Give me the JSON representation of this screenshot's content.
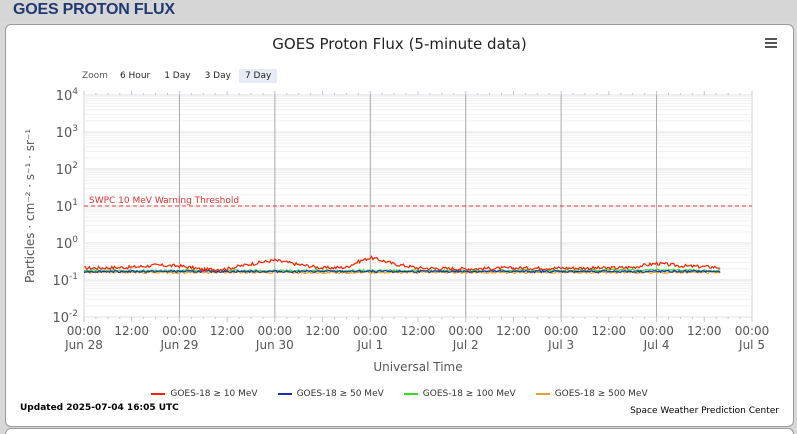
{
  "panel": {
    "title": "GOES PROTON FLUX"
  },
  "chart": {
    "title": "GOES Proton Flux (5-minute data)",
    "zoom_label": "Zoom",
    "zoom_options": [
      "6 Hour",
      "1 Day",
      "3 Day",
      "7 Day"
    ],
    "zoom_selected": "7 Day",
    "updated": "Updated 2025-07-04 16:05 UTC",
    "credit": "Space Weather Prediction Center"
  },
  "chart_data": {
    "type": "line",
    "title": "GOES Proton Flux (5-minute data)",
    "xlabel": "Universal Time",
    "ylabel": "Particles · cm⁻² · s⁻¹ · sr⁻¹",
    "y_scale": "log",
    "ylim": [
      0.01,
      10000
    ],
    "xlim": [
      "2025-06-28 00:00",
      "2025-07-05 00:00"
    ],
    "y_ticks": [
      {
        "value": 10000,
        "label_base": "10",
        "label_exp": "4"
      },
      {
        "value": 1000,
        "label_base": "10",
        "label_exp": "3"
      },
      {
        "value": 100,
        "label_base": "10",
        "label_exp": "2"
      },
      {
        "value": 10,
        "label_base": "10",
        "label_exp": "1"
      },
      {
        "value": 1,
        "label_base": "10",
        "label_exp": "0"
      },
      {
        "value": 0.1,
        "label_base": "10",
        "label_exp": "-1"
      },
      {
        "value": 0.01,
        "label_base": "10",
        "label_exp": "-2"
      }
    ],
    "x_ticks": [
      {
        "t": "2025-06-28 00:00",
        "time": "00:00",
        "date": "Jun 28"
      },
      {
        "t": "2025-06-28 12:00",
        "time": "12:00",
        "date": ""
      },
      {
        "t": "2025-06-29 00:00",
        "time": "00:00",
        "date": "Jun 29"
      },
      {
        "t": "2025-06-29 12:00",
        "time": "12:00",
        "date": ""
      },
      {
        "t": "2025-06-30 00:00",
        "time": "00:00",
        "date": "Jun 30"
      },
      {
        "t": "2025-06-30 12:00",
        "time": "12:00",
        "date": ""
      },
      {
        "t": "2025-07-01 00:00",
        "time": "00:00",
        "date": "Jul 1"
      },
      {
        "t": "2025-07-01 12:00",
        "time": "12:00",
        "date": ""
      },
      {
        "t": "2025-07-02 00:00",
        "time": "00:00",
        "date": "Jul 2"
      },
      {
        "t": "2025-07-02 12:00",
        "time": "12:00",
        "date": ""
      },
      {
        "t": "2025-07-03 00:00",
        "time": "00:00",
        "date": "Jul 3"
      },
      {
        "t": "2025-07-03 12:00",
        "time": "12:00",
        "date": ""
      },
      {
        "t": "2025-07-04 00:00",
        "time": "00:00",
        "date": "Jul 4"
      },
      {
        "t": "2025-07-04 12:00",
        "time": "12:00",
        "date": ""
      },
      {
        "t": "2025-07-05 00:00",
        "time": "00:00",
        "date": "Jul 5"
      }
    ],
    "threshold": {
      "value": 10,
      "label": "SWPC 10 MeV Warning Threshold",
      "color": "#e03030"
    },
    "series": [
      {
        "name": "GOES-18 ≥ 10 MeV",
        "color": "#ff2000",
        "points": [
          [
            "2025-06-28 00:00",
            0.21
          ],
          [
            "2025-06-28 12:00",
            0.22
          ],
          [
            "2025-06-28 18:00",
            0.25
          ],
          [
            "2025-06-29 00:00",
            0.24
          ],
          [
            "2025-06-29 06:00",
            0.19
          ],
          [
            "2025-06-29 12:00",
            0.2
          ],
          [
            "2025-06-29 18:00",
            0.27
          ],
          [
            "2025-06-30 00:00",
            0.34
          ],
          [
            "2025-06-30 06:00",
            0.26
          ],
          [
            "2025-06-30 12:00",
            0.21
          ],
          [
            "2025-06-30 18:00",
            0.22
          ],
          [
            "2025-07-01 00:00",
            0.4
          ],
          [
            "2025-07-01 06:00",
            0.27
          ],
          [
            "2025-07-01 12:00",
            0.21
          ],
          [
            "2025-07-02 00:00",
            0.2
          ],
          [
            "2025-07-02 12:00",
            0.21
          ],
          [
            "2025-07-03 00:00",
            0.21
          ],
          [
            "2025-07-03 12:00",
            0.21
          ],
          [
            "2025-07-03 18:00",
            0.22
          ],
          [
            "2025-07-04 00:00",
            0.28
          ],
          [
            "2025-07-04 06:00",
            0.24
          ],
          [
            "2025-07-04 16:00",
            0.22
          ]
        ]
      },
      {
        "name": "GOES-18 ≥ 50 MeV",
        "color": "#1a2fb0",
        "points": [
          [
            "2025-06-28 00:00",
            0.17
          ],
          [
            "2025-06-29 00:00",
            0.17
          ],
          [
            "2025-06-30 00:00",
            0.17
          ],
          [
            "2025-07-01 00:00",
            0.17
          ],
          [
            "2025-07-02 00:00",
            0.17
          ],
          [
            "2025-07-03 00:00",
            0.17
          ],
          [
            "2025-07-04 00:00",
            0.17
          ],
          [
            "2025-07-04 16:00",
            0.17
          ]
        ]
      },
      {
        "name": "GOES-18 ≥ 100 MeV",
        "color": "#33dd22",
        "points": [
          [
            "2025-06-28 00:00",
            0.18
          ],
          [
            "2025-06-29 00:00",
            0.18
          ],
          [
            "2025-06-30 00:00",
            0.18
          ],
          [
            "2025-07-01 00:00",
            0.18
          ],
          [
            "2025-07-02 00:00",
            0.18
          ],
          [
            "2025-07-03 00:00",
            0.18
          ],
          [
            "2025-07-04 00:00",
            0.19
          ],
          [
            "2025-07-04 16:00",
            0.18
          ]
        ]
      },
      {
        "name": "GOES-18 ≥ 500 MeV",
        "color": "#e0a030",
        "points": [
          [
            "2025-06-28 00:00",
            0.16
          ],
          [
            "2025-06-29 00:00",
            0.16
          ],
          [
            "2025-06-30 00:00",
            0.16
          ],
          [
            "2025-07-01 00:00",
            0.16
          ],
          [
            "2025-07-02 00:00",
            0.16
          ],
          [
            "2025-07-03 00:00",
            0.16
          ],
          [
            "2025-07-04 00:00",
            0.16
          ],
          [
            "2025-07-04 16:00",
            0.16
          ]
        ]
      }
    ]
  }
}
